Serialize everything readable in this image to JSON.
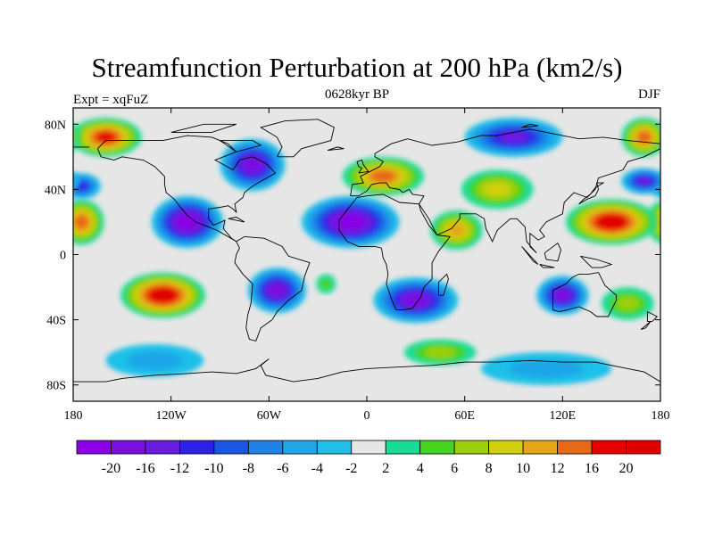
{
  "title": "Streamfunction Perturbation at 200 hPa (km2/s)",
  "subtitle_left": "Expt = xqFuZ",
  "subtitle_center": "0628kyr BP",
  "subtitle_right": "DJF",
  "map": {
    "projection": "cylindrical equidistant",
    "lon_range": [
      -180,
      180
    ],
    "lat_range": [
      -90,
      90
    ],
    "lon_ticks": [
      {
        "value": -180,
        "label": "180"
      },
      {
        "value": -120,
        "label": "120W"
      },
      {
        "value": -60,
        "label": "60W"
      },
      {
        "value": 0,
        "label": "0"
      },
      {
        "value": 60,
        "label": "60E"
      },
      {
        "value": 120,
        "label": "120E"
      },
      {
        "value": 180,
        "label": "180"
      }
    ],
    "lat_ticks": [
      {
        "value": 80,
        "label": "80N"
      },
      {
        "value": 40,
        "label": "40N"
      },
      {
        "value": 0,
        "label": "0"
      },
      {
        "value": -40,
        "label": "40S"
      },
      {
        "value": -80,
        "label": "80S"
      }
    ],
    "no_data_color": "#e6e6e6",
    "field_centers": [
      {
        "lon": -160,
        "lat": 72,
        "value": 18,
        "rx": 22,
        "ry": 12
      },
      {
        "lon": -175,
        "lat": 20,
        "value": 14,
        "rx": 14,
        "ry": 14
      },
      {
        "lon": -175,
        "lat": 42,
        "value": -10,
        "rx": 12,
        "ry": 8
      },
      {
        "lon": -125,
        "lat": -25,
        "value": 20,
        "rx": 26,
        "ry": 14
      },
      {
        "lon": -110,
        "lat": 20,
        "value": -20,
        "rx": 22,
        "ry": 16
      },
      {
        "lon": -70,
        "lat": 55,
        "value": -18,
        "rx": 20,
        "ry": 16
      },
      {
        "lon": -55,
        "lat": -22,
        "value": -18,
        "rx": 18,
        "ry": 14
      },
      {
        "lon": -10,
        "lat": 20,
        "value": -20,
        "rx": 30,
        "ry": 16
      },
      {
        "lon": 10,
        "lat": 48,
        "value": 14,
        "rx": 25,
        "ry": 12
      },
      {
        "lon": 30,
        "lat": -28,
        "value": -18,
        "rx": 26,
        "ry": 14
      },
      {
        "lon": 55,
        "lat": 15,
        "value": 10,
        "rx": 16,
        "ry": 12
      },
      {
        "lon": 90,
        "lat": 72,
        "value": -14,
        "rx": 30,
        "ry": 12
      },
      {
        "lon": 80,
        "lat": 40,
        "value": 8,
        "rx": 22,
        "ry": 12
      },
      {
        "lon": 150,
        "lat": 20,
        "value": 20,
        "rx": 28,
        "ry": 14
      },
      {
        "lon": 120,
        "lat": -25,
        "value": -16,
        "rx": 16,
        "ry": 12
      },
      {
        "lon": 170,
        "lat": 45,
        "value": -12,
        "rx": 14,
        "ry": 8
      },
      {
        "lon": 170,
        "lat": 72,
        "value": 14,
        "rx": 14,
        "ry": 12
      },
      {
        "lon": 45,
        "lat": -60,
        "value": 6,
        "rx": 22,
        "ry": 8
      },
      {
        "lon": 110,
        "lat": -70,
        "value": -4,
        "rx": 40,
        "ry": 10
      },
      {
        "lon": -130,
        "lat": -65,
        "value": -4,
        "rx": 30,
        "ry": 10
      },
      {
        "lon": -25,
        "lat": -18,
        "value": 4,
        "rx": 6,
        "ry": 6
      },
      {
        "lon": 160,
        "lat": -30,
        "value": 6,
        "rx": 16,
        "ry": 10
      }
    ]
  },
  "colorbar": {
    "levels": [
      "-20",
      "-16",
      "-12",
      "-10",
      "-8",
      "-6",
      "-4",
      "-2",
      "2",
      "4",
      "6",
      "8",
      "10",
      "12",
      "16",
      "20"
    ],
    "colors": [
      "#8a00e8",
      "#7a10e0",
      "#6a1ce0",
      "#2e20e6",
      "#1a56e6",
      "#1e82e8",
      "#1ea6e8",
      "#1ec0e8",
      "#e6e6e6",
      "#18dc96",
      "#44d41c",
      "#9ccf0e",
      "#d0d00e",
      "#e6a616",
      "#e86818",
      "#e60000",
      "#e00000"
    ]
  }
}
